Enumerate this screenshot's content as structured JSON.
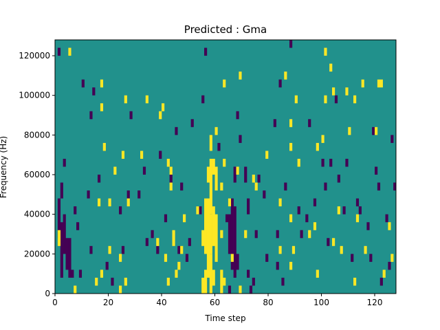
{
  "chart_data": {
    "type": "heatmap",
    "title": "Predicted : Gma",
    "xlabel": "Time step",
    "ylabel": "Frequency (Hz)",
    "xlim": [
      0,
      128
    ],
    "ylim": [
      0,
      128000
    ],
    "x_ticks": [
      0,
      20,
      40,
      60,
      80,
      100,
      120
    ],
    "x_tick_labels": [
      "0",
      "20",
      "40",
      "60",
      "80",
      "100",
      "120"
    ],
    "y_ticks": [
      0,
      20000,
      40000,
      60000,
      80000,
      100000,
      120000
    ],
    "y_tick_labels": [
      "0",
      "20000",
      "40000",
      "60000",
      "80000",
      "100000",
      "120000"
    ],
    "colormap": "viridis",
    "colors": {
      "background": "#21918c",
      "low": "#440154",
      "high": "#fde725"
    },
    "grid": false,
    "legend": "none",
    "cell_height_hz": 4000,
    "background_value": 0,
    "high_runs": [
      [
        1,
        24000,
        32000
      ],
      [
        5,
        120000,
        124000
      ],
      [
        7,
        0,
        4000
      ],
      [
        15,
        4000,
        8000
      ],
      [
        16,
        44000,
        48000
      ],
      [
        17,
        8000,
        12000
      ],
      [
        17,
        92000,
        96000
      ],
      [
        17,
        104000,
        108000
      ],
      [
        18,
        72000,
        76000
      ],
      [
        20,
        20000,
        24000
      ],
      [
        20,
        44000,
        48000
      ],
      [
        22,
        60000,
        64000
      ],
      [
        24,
        0,
        4000
      ],
      [
        24,
        16000,
        20000
      ],
      [
        25,
        68000,
        72000
      ],
      [
        26,
        4000,
        8000
      ],
      [
        26,
        96000,
        100000
      ],
      [
        27,
        44000,
        48000
      ],
      [
        32,
        68000,
        72000
      ],
      [
        34,
        96000,
        100000
      ],
      [
        38,
        24000,
        28000
      ],
      [
        39,
        88000,
        92000
      ],
      [
        40,
        92000,
        96000
      ],
      [
        41,
        16000,
        20000
      ],
      [
        42,
        4000,
        8000
      ],
      [
        42,
        64000,
        68000
      ],
      [
        43,
        60000,
        64000
      ],
      [
        43,
        52000,
        56000
      ],
      [
        44,
        24000,
        32000
      ],
      [
        45,
        8000,
        12000
      ],
      [
        46,
        12000,
        16000
      ],
      [
        47,
        20000,
        24000
      ],
      [
        48,
        36000,
        40000
      ],
      [
        53,
        40000,
        44000
      ],
      [
        55,
        0,
        8000
      ],
      [
        55,
        24000,
        32000
      ],
      [
        56,
        0,
        12000
      ],
      [
        56,
        20000,
        48000
      ],
      [
        57,
        8000,
        48000
      ],
      [
        57,
        56000,
        64000
      ],
      [
        57,
        36000,
        40000
      ],
      [
        58,
        0,
        20000
      ],
      [
        58,
        20000,
        40000
      ],
      [
        58,
        40000,
        68000
      ],
      [
        58,
        72000,
        80000
      ],
      [
        59,
        4000,
        12000
      ],
      [
        59,
        24000,
        44000
      ],
      [
        59,
        60000,
        68000
      ],
      [
        60,
        16000,
        40000
      ],
      [
        60,
        52000,
        64000
      ],
      [
        60,
        80000,
        84000
      ],
      [
        62,
        52000,
        56000
      ],
      [
        62,
        28000,
        32000
      ],
      [
        62,
        0,
        12000
      ],
      [
        63,
        4000,
        8000
      ],
      [
        63,
        64000,
        68000
      ],
      [
        63,
        104000,
        108000
      ],
      [
        65,
        44000,
        48000
      ],
      [
        66,
        16000,
        20000
      ],
      [
        68,
        60000,
        64000
      ],
      [
        69,
        0,
        4000
      ],
      [
        69,
        108000,
        112000
      ],
      [
        71,
        28000,
        32000
      ],
      [
        74,
        56000,
        60000
      ],
      [
        75,
        52000,
        56000
      ],
      [
        79,
        68000,
        72000
      ],
      [
        84,
        20000,
        24000
      ],
      [
        84,
        44000,
        48000
      ],
      [
        86,
        108000,
        112000
      ],
      [
        88,
        12000,
        16000
      ],
      [
        88,
        36000,
        40000
      ],
      [
        88,
        72000,
        76000
      ],
      [
        88,
        84000,
        88000
      ],
      [
        89,
        20000,
        24000
      ],
      [
        90,
        96000,
        100000
      ],
      [
        91,
        64000,
        68000
      ],
      [
        95,
        28000,
        32000
      ],
      [
        97,
        32000,
        36000
      ],
      [
        98,
        8000,
        12000
      ],
      [
        98,
        72000,
        76000
      ],
      [
        100,
        76000,
        80000
      ],
      [
        101,
        96000,
        100000
      ],
      [
        101,
        120000,
        124000
      ],
      [
        103,
        112000,
        116000
      ],
      [
        104,
        100000,
        104000
      ],
      [
        104,
        24000,
        28000
      ],
      [
        106,
        40000,
        44000
      ],
      [
        107,
        20000,
        24000
      ],
      [
        109,
        100000,
        104000
      ],
      [
        110,
        80000,
        84000
      ],
      [
        112,
        4000,
        8000
      ],
      [
        112,
        96000,
        100000
      ],
      [
        113,
        36000,
        40000
      ],
      [
        115,
        104000,
        108000
      ],
      [
        116,
        20000,
        24000
      ],
      [
        120,
        80000,
        84000
      ],
      [
        121,
        104000,
        108000
      ],
      [
        122,
        104000,
        108000
      ],
      [
        123,
        8000,
        12000
      ],
      [
        125,
        32000,
        36000
      ],
      [
        126,
        16000,
        20000
      ]
    ],
    "low_runs": [
      [
        1,
        120000,
        124000
      ],
      [
        1,
        28000,
        48000
      ],
      [
        2,
        8000,
        36000
      ],
      [
        2,
        48000,
        56000
      ],
      [
        3,
        20000,
        40000
      ],
      [
        3,
        64000,
        68000
      ],
      [
        4,
        12000,
        28000
      ],
      [
        5,
        8000,
        28000
      ],
      [
        6,
        8000,
        12000
      ],
      [
        7,
        40000,
        44000
      ],
      [
        8,
        32000,
        36000
      ],
      [
        9,
        8000,
        12000
      ],
      [
        10,
        104000,
        108000
      ],
      [
        12,
        48000,
        52000
      ],
      [
        13,
        20000,
        24000
      ],
      [
        13,
        88000,
        92000
      ],
      [
        14,
        100000,
        104000
      ],
      [
        16,
        56000,
        60000
      ],
      [
        19,
        12000,
        16000
      ],
      [
        21,
        4000,
        8000
      ],
      [
        24,
        40000,
        44000
      ],
      [
        25,
        20000,
        24000
      ],
      [
        27,
        48000,
        52000
      ],
      [
        28,
        88000,
        92000
      ],
      [
        31,
        48000,
        52000
      ],
      [
        33,
        60000,
        64000
      ],
      [
        34,
        24000,
        28000
      ],
      [
        36,
        28000,
        32000
      ],
      [
        38,
        20000,
        24000
      ],
      [
        39,
        68000,
        72000
      ],
      [
        41,
        36000,
        40000
      ],
      [
        43,
        56000,
        60000
      ],
      [
        45,
        80000,
        84000
      ],
      [
        46,
        20000,
        24000
      ],
      [
        47,
        52000,
        56000
      ],
      [
        49,
        16000,
        20000
      ],
      [
        50,
        24000,
        28000
      ],
      [
        51,
        84000,
        88000
      ],
      [
        54,
        40000,
        44000
      ],
      [
        55,
        96000,
        100000
      ],
      [
        56,
        120000,
        124000
      ],
      [
        61,
        72000,
        76000
      ],
      [
        64,
        36000,
        40000
      ],
      [
        65,
        0,
        4000
      ],
      [
        65,
        20000,
        40000
      ],
      [
        66,
        12000,
        48000
      ],
      [
        67,
        8000,
        44000
      ],
      [
        67,
        56000,
        64000
      ],
      [
        68,
        12000,
        20000
      ],
      [
        68,
        88000,
        92000
      ],
      [
        69,
        76000,
        80000
      ],
      [
        71,
        56000,
        64000
      ],
      [
        72,
        8000,
        12000
      ],
      [
        72,
        40000,
        48000
      ],
      [
        73,
        0,
        4000
      ],
      [
        74,
        4000,
        8000
      ],
      [
        75,
        28000,
        32000
      ],
      [
        76,
        56000,
        60000
      ],
      [
        78,
        48000,
        52000
      ],
      [
        79,
        16000,
        20000
      ],
      [
        82,
        84000,
        88000
      ],
      [
        83,
        12000,
        16000
      ],
      [
        83,
        28000,
        32000
      ],
      [
        84,
        104000,
        108000
      ],
      [
        85,
        4000,
        8000
      ],
      [
        86,
        52000,
        56000
      ],
      [
        88,
        124000,
        128000
      ],
      [
        91,
        40000,
        44000
      ],
      [
        92,
        28000,
        32000
      ],
      [
        94,
        36000,
        40000
      ],
      [
        95,
        84000,
        88000
      ],
      [
        97,
        44000,
        48000
      ],
      [
        100,
        64000,
        68000
      ],
      [
        101,
        52000,
        56000
      ],
      [
        102,
        24000,
        28000
      ],
      [
        103,
        64000,
        68000
      ],
      [
        105,
        96000,
        100000
      ],
      [
        106,
        56000,
        60000
      ],
      [
        108,
        40000,
        44000
      ],
      [
        109,
        64000,
        68000
      ],
      [
        111,
        16000,
        20000
      ],
      [
        113,
        44000,
        48000
      ],
      [
        114,
        40000,
        44000
      ],
      [
        117,
        32000,
        36000
      ],
      [
        118,
        16000,
        20000
      ],
      [
        119,
        80000,
        84000
      ],
      [
        120,
        60000,
        64000
      ],
      [
        121,
        52000,
        56000
      ],
      [
        122,
        4000,
        8000
      ],
      [
        124,
        36000,
        40000
      ],
      [
        125,
        12000,
        16000
      ],
      [
        126,
        76000,
        80000
      ],
      [
        127,
        52000,
        56000
      ]
    ]
  }
}
